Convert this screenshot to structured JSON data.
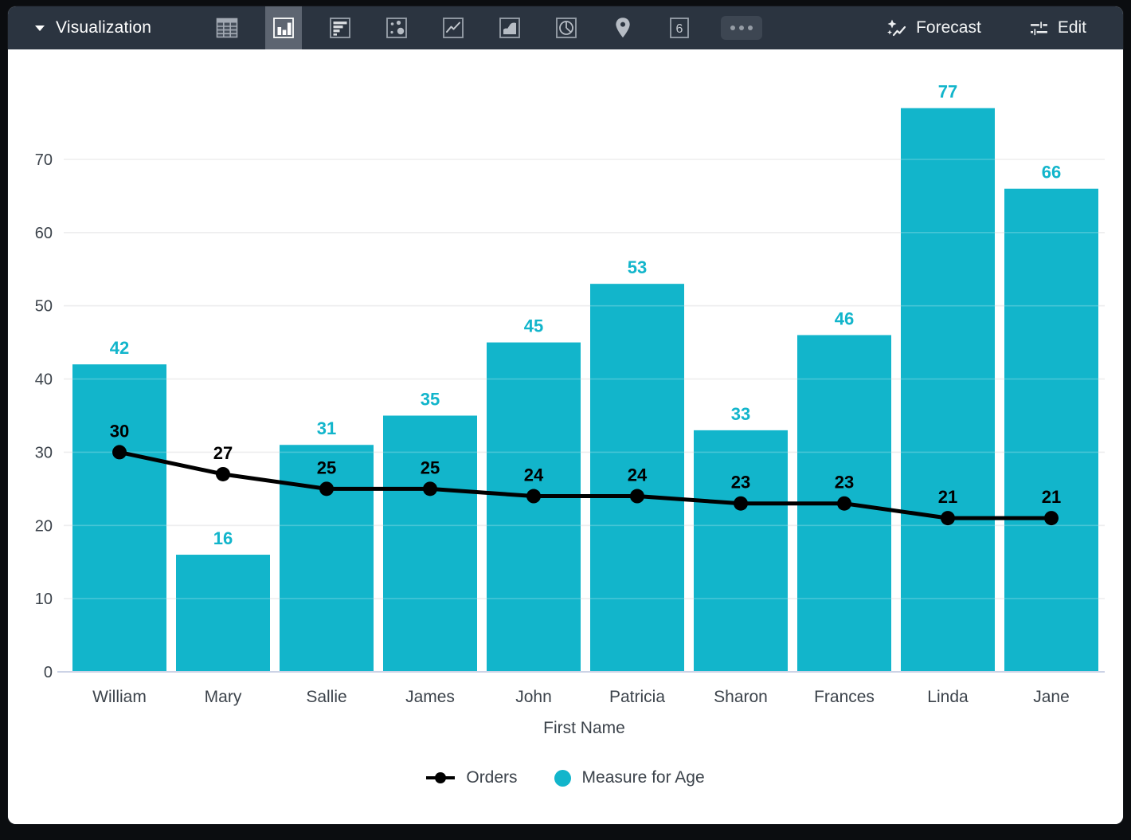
{
  "toolbar": {
    "title": "Visualization",
    "viz_type_icons": [
      "table",
      "column-chart",
      "bar-chart",
      "scatter",
      "line-chart",
      "area-chart",
      "pie-chart",
      "map",
      "single-value",
      "more-options"
    ],
    "selected_viz_type": "column-chart",
    "single_value_glyph": "6",
    "forecast_label": "Forecast",
    "edit_label": "Edit"
  },
  "colors": {
    "bar": "#12b5cb",
    "line": "#000000",
    "toolbar_bg": "#2b3440",
    "selected_viz_bg": "#5d6571",
    "axis_text": "#3c434b",
    "gridline": "#e9e9eb",
    "zero_line": "#ccd3e6"
  },
  "chart_data": {
    "type": "combo",
    "categories": [
      "William",
      "Mary",
      "Sallie",
      "James",
      "John",
      "Patricia",
      "Sharon",
      "Frances",
      "Linda",
      "Jane"
    ],
    "series": [
      {
        "name": "Orders",
        "type": "line",
        "color": "#000000",
        "values": [
          30,
          27,
          25,
          25,
          24,
          24,
          23,
          23,
          21,
          21
        ]
      },
      {
        "name": "Measure for Age",
        "type": "bar",
        "color": "#12b5cb",
        "values": [
          42,
          16,
          31,
          35,
          45,
          53,
          33,
          46,
          77,
          66
        ]
      }
    ],
    "xlabel": "First Name",
    "ylabel": "",
    "y_ticks": [
      0,
      10,
      20,
      30,
      40,
      50,
      60,
      70
    ],
    "ylim": [
      0,
      80
    ],
    "grid": true,
    "value_labels": true,
    "legend_position": "bottom"
  }
}
